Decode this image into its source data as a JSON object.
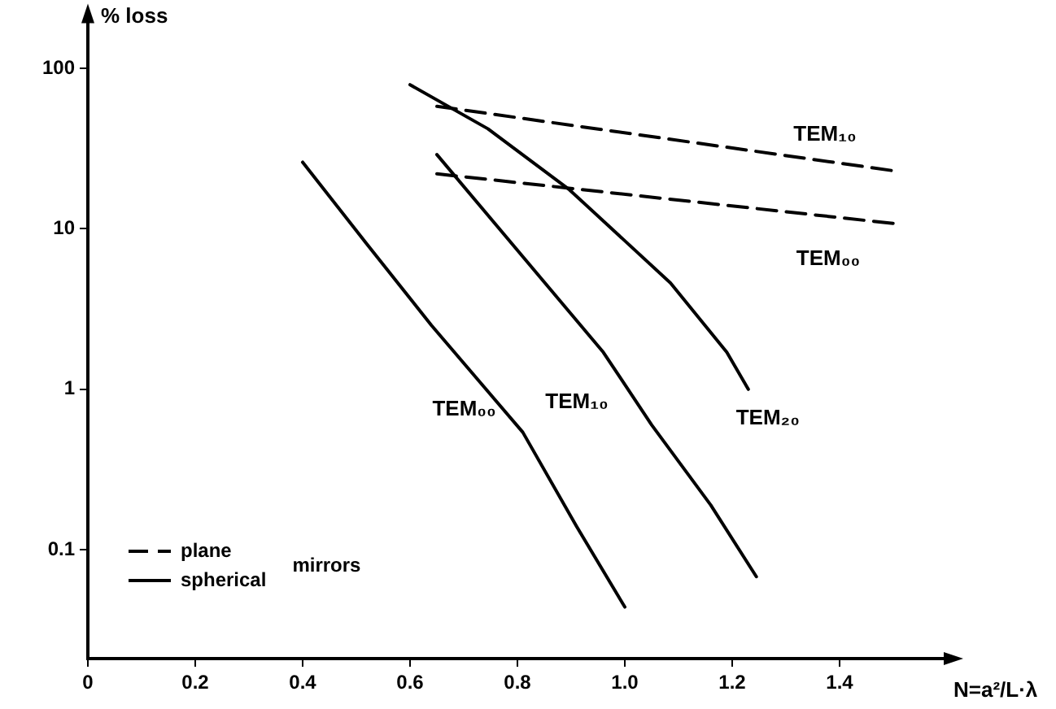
{
  "chart_data": {
    "type": "line",
    "xlabel": "N=a²/L·λ",
    "ylabel": "% loss",
    "legend_title": "mirrors",
    "legend": "bottom left",
    "log": "y",
    "grid": false,
    "marker": "none",
    "xlim": [
      0,
      1.6
    ],
    "ylim": [
      0.021,
      210
    ],
    "xticks": [
      0,
      0.2,
      0.4,
      0.6,
      0.8,
      {
        "value": 1,
        "label": "1.0"
      },
      1.2,
      1.4
    ],
    "yticks": [
      0.1,
      1,
      10,
      100
    ],
    "series": [
      {
        "name": "plane",
        "color": "#000000",
        "line_style": "dashed",
        "x": [
          0.65,
          1.5
        ],
        "values": [
          58,
          23
        ]
      },
      {
        "color": "#000000",
        "line_style": "dashed",
        "x": [
          0.65,
          1.5
        ],
        "values": [
          22,
          10.8
        ]
      },
      {
        "name": "spherical",
        "color": "#000000",
        "line_style": "solid",
        "x": [
          0.4,
          0.52,
          0.64,
          0.81,
          0.91,
          1.0
        ],
        "values": [
          26,
          8,
          2.5,
          0.54,
          0.14,
          0.044
        ]
      },
      {
        "color": "#000000",
        "line_style": "solid",
        "x": [
          0.65,
          0.96,
          1.05,
          1.16,
          1.245
        ],
        "values": [
          29,
          1.7,
          0.6,
          0.19,
          0.068
        ]
      },
      {
        "color": "#000000",
        "line_style": "solid",
        "x": [
          0.6,
          0.745,
          0.897,
          1.085,
          1.19,
          1.23
        ],
        "values": [
          79,
          42,
          17.5,
          4.6,
          1.7,
          1.0
        ]
      }
    ],
    "annotations": [
      "TEM₁₀",
      "TEM₀₀",
      "TEM₀₀",
      "TEM₁₀",
      "TEM₂₀"
    ]
  }
}
